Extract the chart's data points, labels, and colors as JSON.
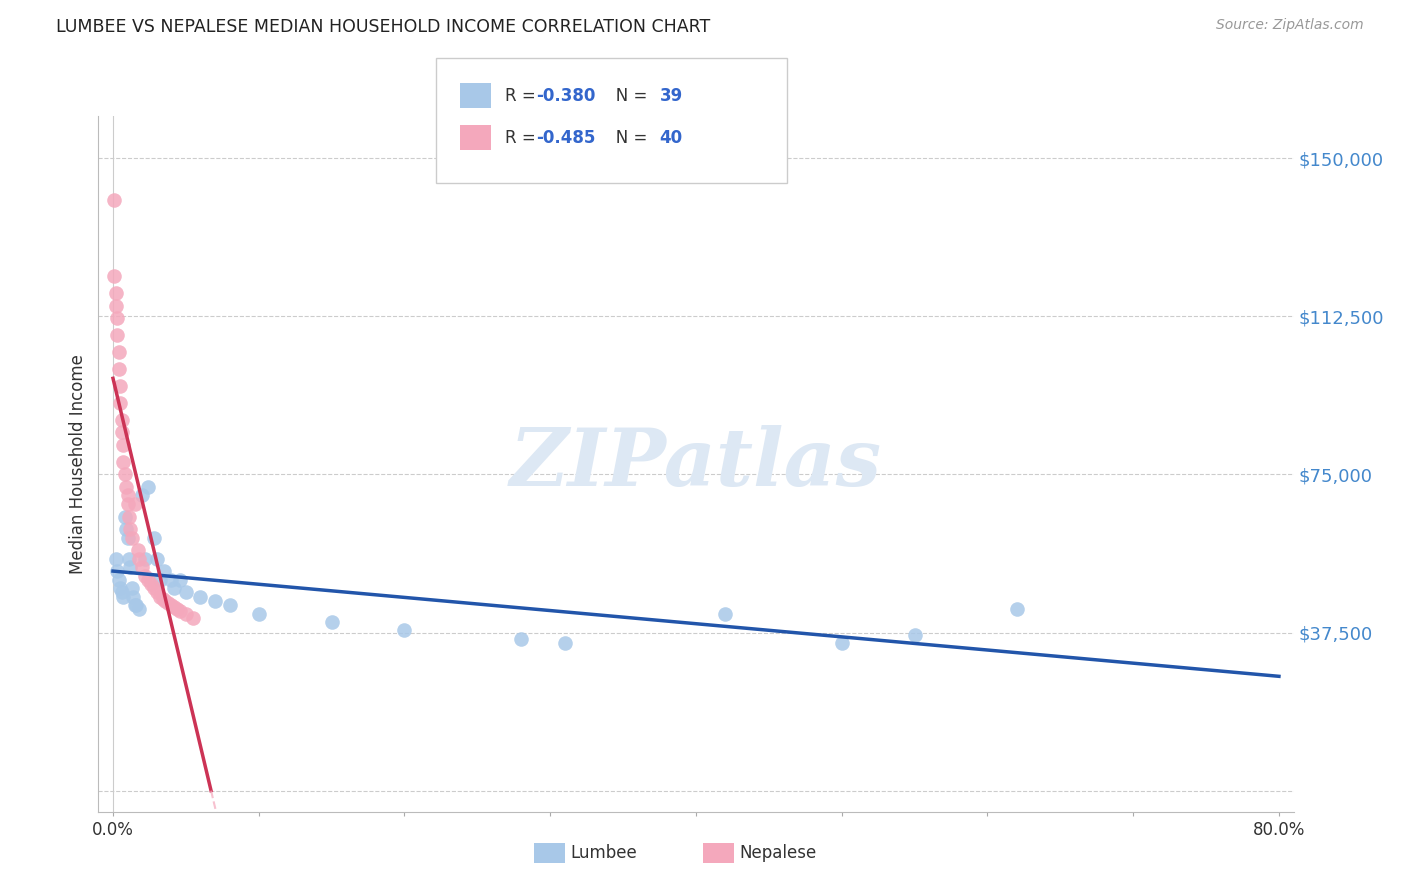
{
  "title": "LUMBEE VS NEPALESE MEDIAN HOUSEHOLD INCOME CORRELATION CHART",
  "source": "Source: ZipAtlas.com",
  "ylabel": "Median Household Income",
  "xmin": 0.0,
  "xmax": 0.8,
  "ymin": 0,
  "ymax": 160000,
  "yticks": [
    0,
    37500,
    75000,
    112500,
    150000
  ],
  "ytick_labels": [
    "",
    "$37,500",
    "$75,000",
    "$112,500",
    "$150,000"
  ],
  "lumbee_R": -0.38,
  "lumbee_N": 39,
  "nepalese_R": -0.485,
  "nepalese_N": 40,
  "lumbee_color": "#a8c8e8",
  "nepalese_color": "#f4a8bc",
  "lumbee_line_color": "#2255aa",
  "nepalese_line_color": "#cc3355",
  "watermark_color": "#dde8f4",
  "lumbee_x": [
    0.002,
    0.003,
    0.004,
    0.005,
    0.006,
    0.007,
    0.008,
    0.009,
    0.01,
    0.011,
    0.012,
    0.013,
    0.014,
    0.015,
    0.016,
    0.018,
    0.02,
    0.022,
    0.024,
    0.028,
    0.03,
    0.032,
    0.035,
    0.04,
    0.042,
    0.046,
    0.05,
    0.06,
    0.07,
    0.08,
    0.1,
    0.15,
    0.2,
    0.28,
    0.31,
    0.42,
    0.5,
    0.55,
    0.62
  ],
  "lumbee_y": [
    55000,
    52000,
    50000,
    48000,
    47000,
    46000,
    65000,
    62000,
    60000,
    55000,
    53000,
    48000,
    46000,
    44000,
    44000,
    43000,
    70000,
    55000,
    72000,
    60000,
    55000,
    50000,
    52000,
    50000,
    48000,
    50000,
    47000,
    46000,
    45000,
    44000,
    42000,
    40000,
    38000,
    36000,
    35000,
    42000,
    35000,
    37000,
    43000
  ],
  "nepalese_x": [
    0.001,
    0.001,
    0.002,
    0.002,
    0.003,
    0.003,
    0.004,
    0.004,
    0.005,
    0.005,
    0.006,
    0.006,
    0.007,
    0.007,
    0.008,
    0.009,
    0.01,
    0.01,
    0.011,
    0.012,
    0.013,
    0.015,
    0.017,
    0.018,
    0.02,
    0.022,
    0.024,
    0.026,
    0.028,
    0.03,
    0.032,
    0.034,
    0.036,
    0.038,
    0.04,
    0.042,
    0.044,
    0.046,
    0.05,
    0.055
  ],
  "nepalese_y": [
    140000,
    122000,
    118000,
    115000,
    112000,
    108000,
    104000,
    100000,
    96000,
    92000,
    88000,
    85000,
    82000,
    78000,
    75000,
    72000,
    70000,
    68000,
    65000,
    62000,
    60000,
    68000,
    57000,
    55000,
    53000,
    51000,
    50000,
    49000,
    48000,
    47000,
    46000,
    45500,
    45000,
    44500,
    44000,
    43500,
    43000,
    42500,
    42000,
    41000
  ]
}
